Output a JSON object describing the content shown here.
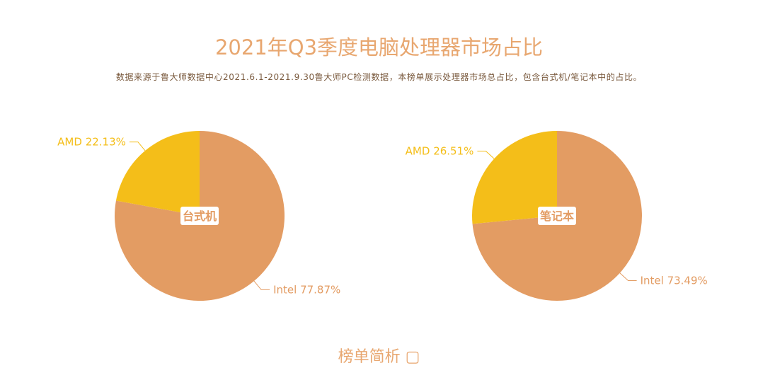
{
  "header": {
    "title": "2021年Q3季度电脑处理器市场占比",
    "subtitle": "数据来源于鲁大师数据中心2021.6.1-2021.9.30鲁大师PC检测数据，本榜单展示处理器市场总占比，包含台式机/笔记本中的占比。"
  },
  "footer": {
    "peek_text": "榜单简析 ▢"
  },
  "colors": {
    "intel": "#e39c63",
    "amd": "#f4be19",
    "title": "#e8a770"
  },
  "chart_data": [
    {
      "type": "pie",
      "center_label": "台式机",
      "slices": [
        {
          "name": "Intel",
          "value": 77.87,
          "label": "Intel 77.87%",
          "color": "#e39c63"
        },
        {
          "name": "AMD",
          "value": 22.13,
          "label": "AMD 22.13%",
          "color": "#f4be19"
        }
      ]
    },
    {
      "type": "pie",
      "center_label": "笔记本",
      "slices": [
        {
          "name": "Intel",
          "value": 73.49,
          "label": "Intel 73.49%",
          "color": "#e39c63"
        },
        {
          "name": "AMD",
          "value": 26.51,
          "label": "AMD 26.51%",
          "color": "#f4be19"
        }
      ]
    }
  ]
}
